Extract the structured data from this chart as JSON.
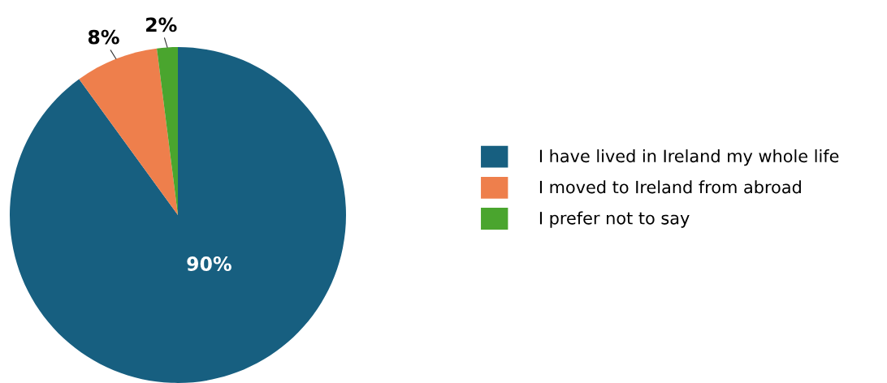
{
  "chart_data": {
    "type": "pie",
    "categories": [
      "I have lived in Ireland my whole life",
      "I moved to Ireland from abroad",
      "I prefer not to say"
    ],
    "values": [
      90,
      8,
      2
    ],
    "colors": [
      "#175f80",
      "#ee7f4c",
      "#4aa52e"
    ],
    "value_labels": [
      "90%",
      "8%",
      "2%"
    ],
    "legend": "right"
  }
}
